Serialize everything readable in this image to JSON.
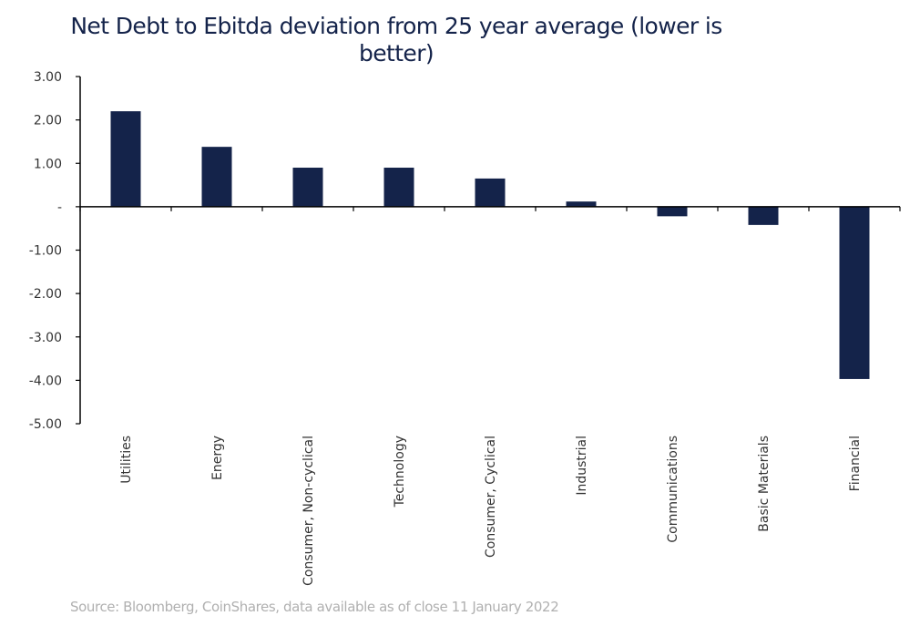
{
  "chart_data": {
    "type": "bar",
    "title": "Net Debt to Ebitda deviation from  25 year average (lower is better)",
    "categories": [
      "Utilities",
      "Energy",
      "Consumer, Non-cyclical",
      "Technology",
      "Consumer, Cyclical",
      "Industrial",
      "Communications",
      "Basic Materials",
      "Financial"
    ],
    "values": [
      2.2,
      1.38,
      0.9,
      0.9,
      0.65,
      0.12,
      -0.22,
      -0.42,
      -3.97
    ],
    "ylim": [
      -5,
      3
    ],
    "yticks": [
      3,
      2,
      1,
      0,
      -1,
      -2,
      -3,
      -4,
      -5
    ],
    "ytick_labels": [
      "3.00",
      "2.00",
      "1.00",
      "-",
      "-1.00",
      "-2.00",
      "-3.00",
      "-4.00",
      "-5.00"
    ],
    "xlabel": "",
    "ylabel": "",
    "grid": false,
    "bar_color": "#14234a"
  },
  "source": "Source: Bloomberg, CoinShares, data available as of close 11 January 2022"
}
